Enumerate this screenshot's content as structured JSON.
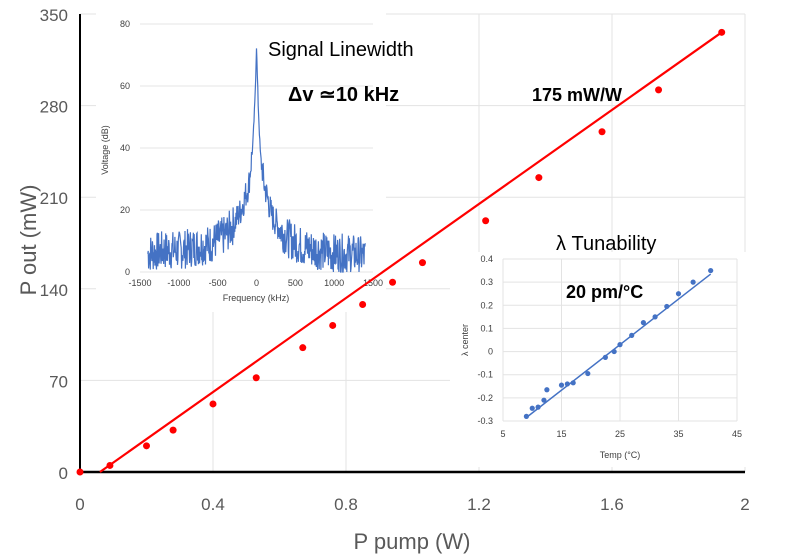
{
  "chart_data": [
    {
      "type": "scatter",
      "name": "main",
      "title": "",
      "xlabel": "P pump (W)",
      "ylabel": "P out (mW)",
      "xlim": [
        0,
        2
      ],
      "ylim": [
        0,
        350
      ],
      "xticks": [
        "0",
        "0.4",
        "0.8",
        "1.2",
        "1.6",
        "2"
      ],
      "yticks": [
        "0",
        "70",
        "140",
        "210",
        "280",
        "350"
      ],
      "grid": true,
      "series": [
        {
          "name": "measured",
          "color": "#ff0000",
          "x": [
            0.0,
            0.09,
            0.2,
            0.28,
            0.4,
            0.53,
            0.67,
            0.76,
            0.85,
            0.94,
            1.03,
            1.22,
            1.38,
            1.57,
            1.74,
            1.93
          ],
          "y": [
            0,
            5,
            20,
            32,
            52,
            72,
            95,
            112,
            128,
            145,
            160,
            192,
            225,
            260,
            292,
            336
          ],
          "fit_line": true
        }
      ],
      "annotations": [
        "175 mW/W"
      ]
    },
    {
      "type": "line",
      "name": "linewidth-inset",
      "title": "Signal Linewidth",
      "subtitle": "Δv ≃10 kHz",
      "xlabel": "Frequency (kHz)",
      "ylabel": "Voltage (dB)",
      "xlim": [
        -1500,
        1500
      ],
      "ylim": [
        0,
        80
      ],
      "xticks": [
        "-1500",
        "-1000",
        "-500",
        "0",
        "500",
        "1000",
        "1500"
      ],
      "yticks": [
        "0",
        "20",
        "40",
        "60",
        "80"
      ],
      "grid": true,
      "series": [
        {
          "name": "spectrum",
          "color": "#4472c4",
          "x": [
            -1400,
            -1200,
            -1000,
            -800,
            -600,
            -400,
            -300,
            -200,
            -100,
            -50,
            -20,
            0,
            20,
            50,
            100,
            200,
            300,
            400,
            600,
            800,
            1000,
            1200,
            1400
          ],
          "y": [
            6,
            7,
            7,
            8,
            9,
            12,
            15,
            20,
            28,
            40,
            55,
            73,
            55,
            38,
            28,
            18,
            14,
            11,
            8,
            7,
            6,
            6,
            5
          ]
        }
      ]
    },
    {
      "type": "scatter",
      "name": "tunability-inset",
      "title": "λ Tunability",
      "xlabel": "Temp (°C)",
      "ylabel": "λ center",
      "xlim": [
        5,
        45
      ],
      "ylim": [
        -0.3,
        0.4
      ],
      "xticks": [
        "5",
        "15",
        "25",
        "35",
        "45"
      ],
      "yticks": [
        "-0.3",
        "-0.2",
        "-0.1",
        "0",
        "0.1",
        "0.2",
        "0.3",
        "0.4"
      ],
      "grid": true,
      "series": [
        {
          "name": "measured",
          "color": "#4472c4",
          "x": [
            9,
            10,
            11,
            12,
            12.5,
            15,
            16,
            17,
            19.5,
            22.5,
            24,
            25,
            27,
            29,
            31,
            33,
            35,
            37.5,
            40.5
          ],
          "y": [
            -0.28,
            -0.245,
            -0.24,
            -0.21,
            -0.165,
            -0.145,
            -0.14,
            -0.135,
            -0.095,
            -0.025,
            0.0,
            0.03,
            0.07,
            0.125,
            0.15,
            0.195,
            0.25,
            0.3,
            0.35
          ],
          "fit_line": true
        }
      ],
      "annotations": [
        "20 pm/°C"
      ]
    }
  ]
}
